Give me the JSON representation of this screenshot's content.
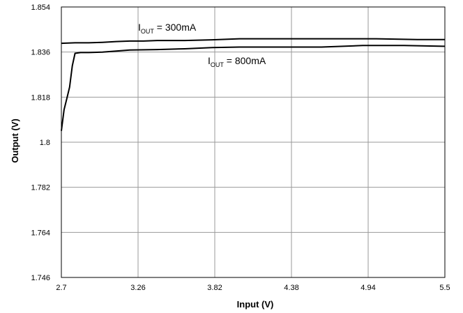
{
  "chart_data": {
    "type": "line",
    "xlabel": "Input (V)",
    "ylabel": "Output (V)",
    "xlim": [
      2.7,
      5.5
    ],
    "ylim": [
      1.746,
      1.854
    ],
    "xticks": [
      "2.7",
      "3.26",
      "3.82",
      "4.38",
      "4.94",
      "5.5"
    ],
    "yticks": [
      "1.854",
      "1.836",
      "1.818",
      "1.8",
      "1.782",
      "1.764",
      "1.746"
    ],
    "grid": true,
    "series": [
      {
        "label_main": "I",
        "label_sub": "OUT",
        "label_rest": " = 300mA",
        "x": [
          2.7,
          2.8,
          2.9,
          3.0,
          3.1,
          3.2,
          3.3,
          3.4,
          3.6,
          3.8,
          4.0,
          4.5,
          5.0,
          5.3,
          5.5
        ],
        "y": [
          1.8395,
          1.8397,
          1.8397,
          1.8399,
          1.8402,
          1.8404,
          1.8404,
          1.8406,
          1.8406,
          1.8409,
          1.8413,
          1.8413,
          1.8413,
          1.841,
          1.841
        ]
      },
      {
        "label_main": "I",
        "label_sub": "OUT",
        "label_rest": " = 800mA",
        "x": [
          2.7,
          2.72,
          2.74,
          2.76,
          2.78,
          2.8,
          2.84,
          2.9,
          3.0,
          3.2,
          3.4,
          3.6,
          3.8,
          4.0,
          4.2,
          4.6,
          4.9,
          5.2,
          5.5
        ],
        "y": [
          1.8045,
          1.813,
          1.8175,
          1.822,
          1.8305,
          1.8355,
          1.8358,
          1.8358,
          1.836,
          1.8368,
          1.837,
          1.8373,
          1.8378,
          1.838,
          1.838,
          1.838,
          1.8386,
          1.8386,
          1.8383
        ]
      }
    ]
  }
}
